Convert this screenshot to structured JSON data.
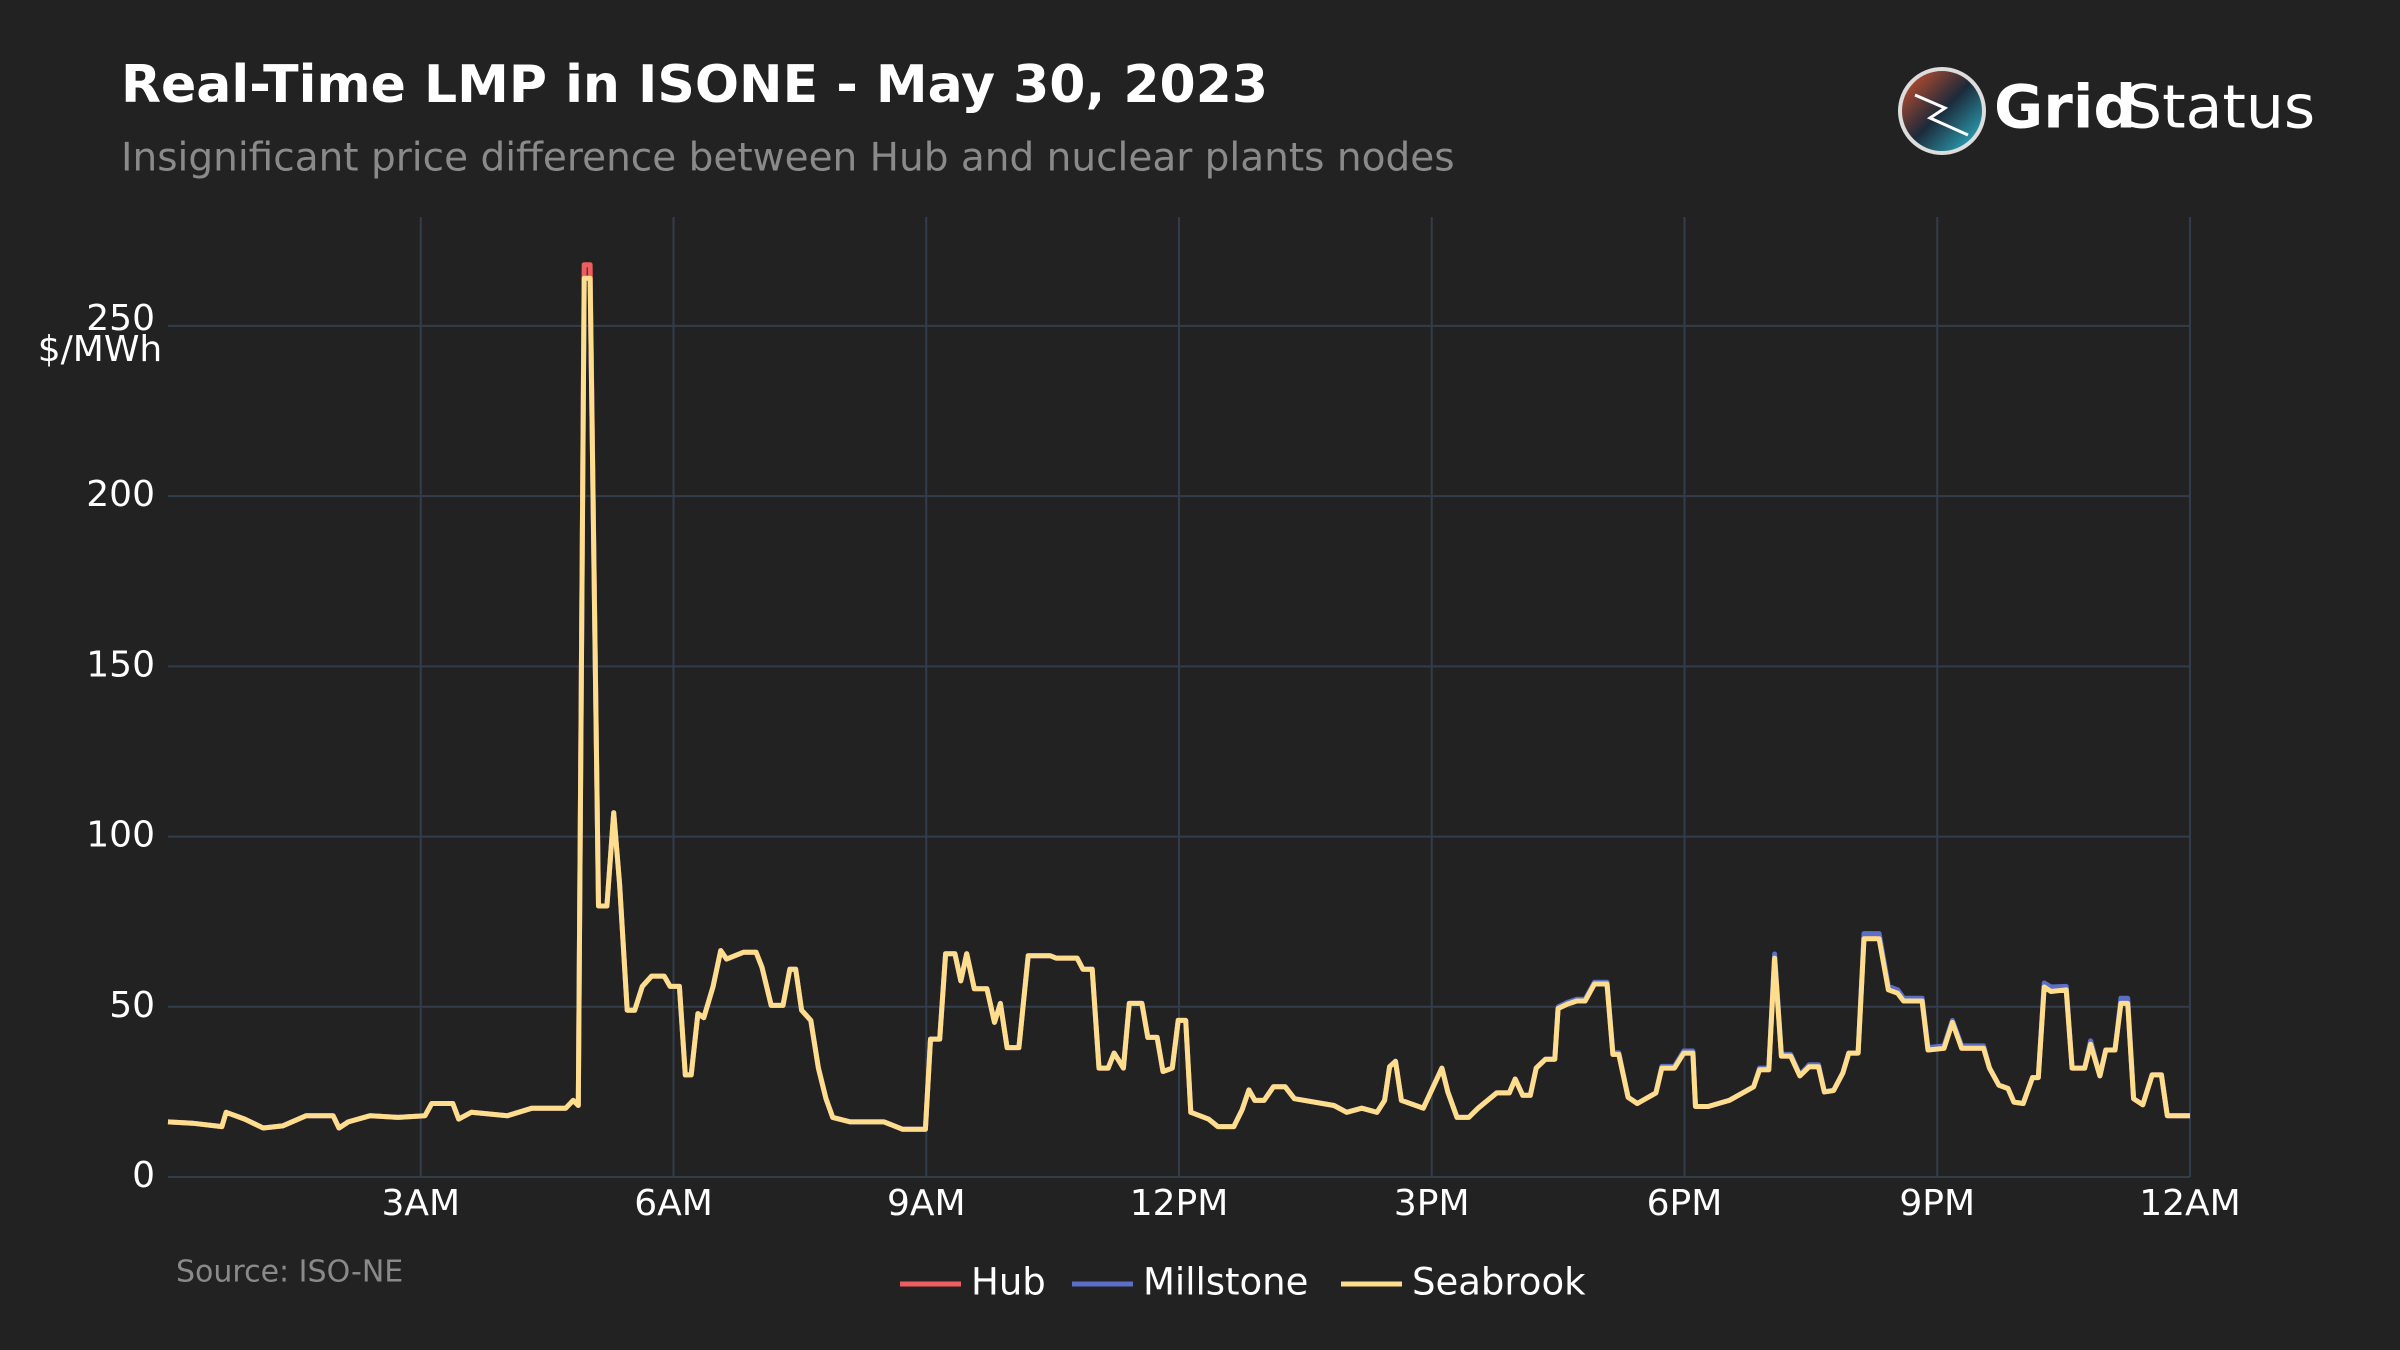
{
  "logo": {
    "bold": "Grid",
    "light": "Status"
  },
  "chart_data": {
    "type": "line",
    "title": "Real-Time LMP in ISONE - May 30, 2023",
    "subtitle": "Insignificant price difference between Hub and nuclear plants nodes",
    "y_label": "$/MWh",
    "source": "Source: ISO-NE",
    "xlim": [
      0,
      24
    ],
    "ylim": [
      0,
      282
    ],
    "xticks": [
      {
        "value": 3,
        "label": "3AM"
      },
      {
        "value": 6,
        "label": "6AM"
      },
      {
        "value": 9,
        "label": "9AM"
      },
      {
        "value": 12,
        "label": "12PM"
      },
      {
        "value": 15,
        "label": "3PM"
      },
      {
        "value": 18,
        "label": "6PM"
      },
      {
        "value": 21,
        "label": "9PM"
      },
      {
        "value": 24,
        "label": "12AM"
      }
    ],
    "yticks": [
      0,
      50,
      100,
      150,
      200,
      250
    ],
    "grid": true,
    "legend": "bottom",
    "x": [
      0,
      0.29,
      0.64,
      0.69,
      0.91,
      1.13,
      1.36,
      1.64,
      1.96,
      2.03,
      2.14,
      2.4,
      2.73,
      3.05,
      3.13,
      3.38,
      3.45,
      3.6,
      4.03,
      4.32,
      4.72,
      4.81,
      4.87,
      4.94,
      5.01,
      5.11,
      5.21,
      5.29,
      5.36,
      5.45,
      5.54,
      5.63,
      5.74,
      5.89,
      5.96,
      6.07,
      6.14,
      6.21,
      6.29,
      6.36,
      6.47,
      6.56,
      6.63,
      6.83,
      6.98,
      7.05,
      7.16,
      7.3,
      7.38,
      7.45,
      7.52,
      7.63,
      7.72,
      7.81,
      7.89,
      8.1,
      8.5,
      8.72,
      8.99,
      9.05,
      9.16,
      9.23,
      9.34,
      9.41,
      9.48,
      9.57,
      9.72,
      9.81,
      9.88,
      9.96,
      10.1,
      10.21,
      10.47,
      10.54,
      10.79,
      10.86,
      10.97,
      11.05,
      11.16,
      11.23,
      11.34,
      11.41,
      11.56,
      11.63,
      11.74,
      11.81,
      11.92,
      11.99,
      12.08,
      12.14,
      12.35,
      12.46,
      12.65,
      12.75,
      12.83,
      12.9,
      13.01,
      13.12,
      13.26,
      13.37,
      13.84,
      13.99,
      14.17,
      14.35,
      14.44,
      14.5,
      14.57,
      14.64,
      14.9,
      15.12,
      15.19,
      15.3,
      15.44,
      15.55,
      15.77,
      15.92,
      15.99,
      16.08,
      16.17,
      16.24,
      16.35,
      16.46,
      16.5,
      16.61,
      16.72,
      16.82,
      16.93,
      17.08,
      17.15,
      17.22,
      17.33,
      17.44,
      17.66,
      17.73,
      17.88,
      17.99,
      18.1,
      18.13,
      18.28,
      18.53,
      18.82,
      18.89,
      19.0,
      19.07,
      19.15,
      19.26,
      19.37,
      19.48,
      19.59,
      19.66,
      19.77,
      19.88,
      19.95,
      20.06,
      20.13,
      20.31,
      20.42,
      20.53,
      20.6,
      20.82,
      20.89,
      21.08,
      21.18,
      21.29,
      21.55,
      21.62,
      21.73,
      21.84,
      21.91,
      22.02,
      22.13,
      22.2,
      22.27,
      22.35,
      22.53,
      22.6,
      22.75,
      22.82,
      22.93,
      23.0,
      23.11,
      23.18,
      23.26,
      23.33,
      23.44,
      23.55,
      23.66,
      23.73,
      24.0
    ],
    "series": [
      {
        "name": "Hub",
        "color": "#f05d5e",
        "values": [
          16.2,
          15.8,
          14.8,
          19,
          17,
          14.4,
          15,
          18,
          18,
          14.4,
          16.2,
          18,
          17.5,
          18,
          21.6,
          21.6,
          17,
          19,
          18,
          20.2,
          20.2,
          22.5,
          21,
          268,
          268,
          79.6,
          79.6,
          107,
          86,
          49,
          49,
          56,
          59,
          59,
          56,
          56,
          30,
          30,
          48,
          46.8,
          56,
          66.5,
          64,
          66,
          66,
          61.6,
          50.4,
          50.4,
          61,
          61,
          49,
          46,
          32,
          23,
          17.5,
          16.2,
          16.2,
          14,
          14,
          40.5,
          40.5,
          65.6,
          65.6,
          57.6,
          65.6,
          55.3,
          55.3,
          45.4,
          51,
          38,
          38,
          65,
          65,
          64.3,
          64.3,
          61,
          61,
          32,
          32,
          36.4,
          32,
          51,
          51,
          41,
          41,
          31,
          32,
          46,
          46,
          19,
          17,
          14.8,
          14.8,
          19.8,
          25.6,
          22.5,
          22.5,
          26.5,
          26.5,
          23,
          21,
          19,
          20.2,
          19,
          22.5,
          32.4,
          34,
          22.5,
          20.2,
          32,
          25,
          17.5,
          17.5,
          20.2,
          24.7,
          24.7,
          28.8,
          24,
          24,
          32,
          34.6,
          34.6,
          49.5,
          50.8,
          51.7,
          51.7,
          56.7,
          56.7,
          36,
          36,
          23.4,
          21.6,
          24.7,
          32,
          32,
          36.4,
          36.4,
          20.7,
          20.7,
          22.5,
          26.5,
          31.5,
          31.5,
          64.5,
          35.5,
          35.5,
          29.7,
          32.4,
          32.4,
          25,
          25.4,
          30.6,
          36.4,
          36.4,
          70.5,
          70.5,
          55,
          54,
          51.7,
          51.7,
          37.3,
          37.8,
          45.4,
          37.8,
          37.8,
          32,
          27,
          26,
          22,
          21.6,
          29.2,
          29.2,
          56.2,
          54.9,
          55.4,
          32,
          32,
          39,
          29.7,
          37.3,
          37.3,
          51.5,
          51.5,
          23,
          21.2,
          30,
          30,
          18,
          18
        ]
      },
      {
        "name": "Millstone",
        "color": "#5b6fc8",
        "values": [
          16.2,
          15.8,
          14.8,
          19,
          17,
          14.4,
          15,
          18,
          18,
          14.4,
          16.2,
          18,
          17.5,
          18,
          21.6,
          21.6,
          17,
          19,
          18,
          20.2,
          20.2,
          22.5,
          21,
          264,
          264,
          79.6,
          79.6,
          107,
          86,
          49,
          49,
          56,
          59,
          59,
          56,
          56,
          30,
          30,
          48,
          46.8,
          56,
          66.5,
          64,
          66,
          66,
          61.6,
          50.4,
          50.4,
          61,
          61,
          49,
          46,
          32,
          23,
          17.5,
          16.2,
          16.2,
          14,
          14,
          40.5,
          40.5,
          65.6,
          65.6,
          57.6,
          65.6,
          55.3,
          55.3,
          45.4,
          51,
          38,
          38,
          65,
          65,
          64.3,
          64.3,
          61,
          61,
          32,
          32,
          36.4,
          32,
          51,
          51,
          41,
          41,
          31,
          32,
          46,
          46,
          19,
          17,
          14.8,
          14.8,
          19.8,
          25.6,
          22.5,
          22.5,
          26.5,
          26.5,
          23,
          21,
          19,
          20.2,
          19,
          22.5,
          32.4,
          34,
          22.5,
          20.2,
          32,
          25,
          17.5,
          17.5,
          20.2,
          24.7,
          24.7,
          28.8,
          24,
          24,
          32,
          34.6,
          34.6,
          50,
          51.3,
          52.2,
          52.2,
          57.2,
          57.2,
          36.5,
          36.5,
          23.4,
          21.6,
          24.7,
          32.5,
          32.5,
          37,
          37,
          20.7,
          20.7,
          22.5,
          26.5,
          32,
          32,
          65.5,
          36,
          36,
          30,
          33,
          33,
          25,
          25.4,
          30.6,
          36.4,
          36.4,
          71.5,
          71.5,
          56,
          55,
          52.5,
          52.5,
          38,
          38.5,
          46,
          38.5,
          38.5,
          32,
          27,
          26,
          22,
          21.6,
          29.2,
          29.2,
          57,
          55.8,
          56,
          32,
          32,
          40,
          29.7,
          37.3,
          37.3,
          52.5,
          52.5,
          23,
          21.2,
          30,
          30,
          18,
          18
        ]
      },
      {
        "name": "Seabrook",
        "color": "#fedd8d",
        "values": [
          16.2,
          15.8,
          14.8,
          19,
          17,
          14.4,
          15,
          18,
          18,
          14.4,
          16.2,
          18,
          17.5,
          18,
          21.6,
          21.6,
          17,
          19,
          18,
          20.2,
          20.2,
          22.5,
          21,
          264,
          264,
          79.6,
          79.6,
          107,
          86,
          49,
          49,
          56,
          59,
          59,
          56,
          56,
          30,
          30,
          48,
          46.8,
          56,
          66.5,
          64,
          66,
          66,
          61.6,
          50.4,
          50.4,
          61,
          61,
          49,
          46,
          32,
          23,
          17.5,
          16.2,
          16.2,
          14,
          14,
          40.5,
          40.5,
          65.6,
          65.6,
          57.6,
          65.6,
          55.3,
          55.3,
          45.4,
          51,
          38,
          38,
          65,
          65,
          64.3,
          64.3,
          61,
          61,
          32,
          32,
          36.4,
          32,
          51,
          51,
          41,
          41,
          31,
          32,
          46,
          46,
          19,
          17,
          14.8,
          14.8,
          19.8,
          25.6,
          22.5,
          22.5,
          26.5,
          26.5,
          23,
          21,
          19,
          20.2,
          19,
          22.5,
          32.4,
          34,
          22.5,
          20.2,
          32,
          25,
          17.5,
          17.5,
          20.2,
          24.7,
          24.7,
          28.8,
          24,
          24,
          32,
          34.6,
          34.6,
          49.5,
          50.8,
          51.7,
          51.7,
          56.7,
          56.7,
          36,
          36,
          23.4,
          21.6,
          24.7,
          32,
          32,
          36.4,
          36.4,
          20.7,
          20.7,
          22.5,
          26.5,
          31.5,
          31.5,
          64.3,
          35.5,
          35.5,
          29.7,
          32.4,
          32.4,
          25,
          25.4,
          30.6,
          36.4,
          36.4,
          70,
          70,
          55,
          54,
          51.7,
          51.7,
          37.3,
          37.8,
          45.4,
          37.8,
          37.8,
          32,
          27,
          26,
          22,
          21.6,
          29.2,
          29.2,
          55.8,
          54.5,
          55,
          32,
          32,
          39,
          29.7,
          37.3,
          37.3,
          51,
          51,
          23,
          21.2,
          30,
          30,
          18,
          18
        ]
      }
    ]
  }
}
